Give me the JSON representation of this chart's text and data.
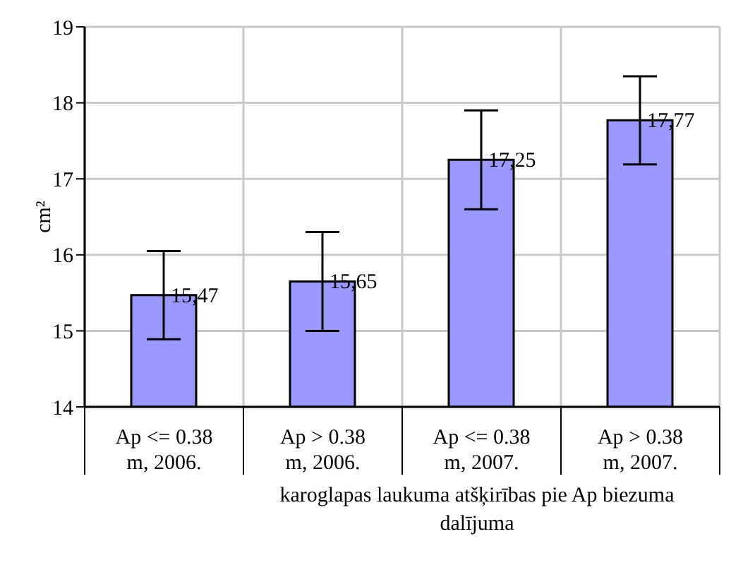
{
  "chart_data": {
    "type": "bar",
    "categories": [
      "Ap <= 0.38 m, 2006.",
      "Ap > 0.38 m, 2006.",
      "Ap <= 0.38 m, 2007.",
      "Ap > 0.38 m, 2007."
    ],
    "values": [
      15.47,
      15.65,
      17.25,
      17.77
    ],
    "errors": [
      0.58,
      0.65,
      0.65,
      0.58
    ],
    "color": "#9999ff",
    "value_labels": [
      "15,47",
      "15,65",
      "17,25",
      "17,77"
    ],
    "xlabel": "karoglapas laukuma atšķirības pie Ap biezuma dalījuma",
    "ylabel": "cm²",
    "ylim": [
      14,
      19
    ],
    "yticks": [
      14,
      15,
      16,
      17,
      18,
      19
    ],
    "grid": true
  }
}
